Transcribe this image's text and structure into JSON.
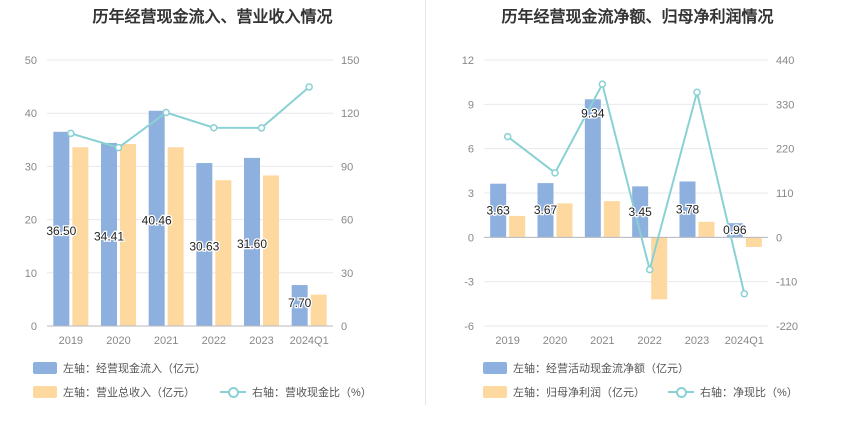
{
  "colors": {
    "blue": "#8eb0de",
    "orange": "#fdd9a0",
    "line": "#8ad1d4",
    "grid": "#e8e8ee",
    "axis_text": "#888888"
  },
  "chart_data": [
    {
      "type": "bar",
      "title": "历年经营现金流入、营业收入情况",
      "categories": [
        "2019",
        "2020",
        "2021",
        "2022",
        "2023",
        "2024Q1"
      ],
      "series": [
        {
          "name": "左轴：经营现金流入（亿元）",
          "axis": "left",
          "kind": "bar",
          "values": [
            36.5,
            34.41,
            40.46,
            30.63,
            31.6,
            7.7
          ],
          "labels": [
            "36.50",
            "34.41",
            "40.46",
            "30.63",
            "31.60",
            "7.70"
          ]
        },
        {
          "name": "左轴：营业总收入（亿元）",
          "axis": "left",
          "kind": "bar",
          "values": [
            33.6,
            34.2,
            33.6,
            27.4,
            28.3,
            5.9
          ]
        },
        {
          "name": "右轴：营收现金比（%）",
          "axis": "right",
          "kind": "line",
          "values": [
            108.6,
            100.6,
            120.4,
            111.8,
            111.7,
            134.8
          ]
        }
      ],
      "left_axis": {
        "ylim": [
          0,
          50
        ],
        "ticks": [
          "0",
          "10",
          "20",
          "30",
          "40",
          "50"
        ]
      },
      "right_axis": {
        "ylim": [
          0,
          150
        ],
        "ticks": [
          "0",
          "30",
          "60",
          "90",
          "120",
          "150"
        ]
      },
      "grid": true
    },
    {
      "type": "bar",
      "title": "历年经营现金流净额、归母净利润情况",
      "categories": [
        "2019",
        "2020",
        "2021",
        "2022",
        "2023",
        "2024Q1"
      ],
      "series": [
        {
          "name": "左轴：经营活动现金流净额（亿元）",
          "axis": "left",
          "kind": "bar",
          "values": [
            3.63,
            3.67,
            9.34,
            3.45,
            3.78,
            0.96
          ],
          "labels": [
            "3.63",
            "3.67",
            "9.34",
            "3.45",
            "3.78",
            "0.96"
          ]
        },
        {
          "name": "左轴：归母净利润（亿元）",
          "axis": "left",
          "kind": "bar",
          "values": [
            1.45,
            2.3,
            2.45,
            -4.2,
            1.05,
            -0.65
          ]
        },
        {
          "name": "右轴：净现比（%）",
          "axis": "right",
          "kind": "line",
          "values": [
            250,
            160,
            380,
            -80,
            360,
            -140
          ]
        }
      ],
      "left_axis": {
        "ylim": [
          -6,
          12
        ],
        "ticks": [
          "-6",
          "-3",
          "0",
          "3",
          "6",
          "9",
          "12"
        ]
      },
      "right_axis": {
        "ylim": [
          -220,
          440
        ],
        "ticks": [
          "-220",
          "-110",
          "0",
          "110",
          "220",
          "330",
          "440"
        ]
      },
      "grid": true
    }
  ]
}
